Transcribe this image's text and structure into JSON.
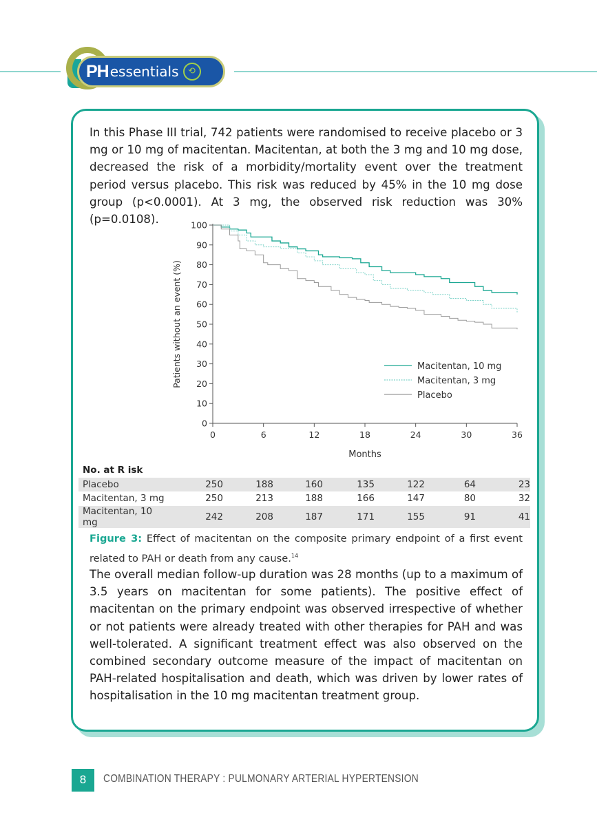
{
  "header": {
    "logo_text_bold": "PH",
    "logo_text": "essentials"
  },
  "intro_paragraph": "In this Phase III trial, 742 patients were randomised to receive placebo or 3 mg or 10 mg of macitentan. Macitentan, at both the 3 mg and 10 mg dose, decreased the risk of a morbidity/mortality event over the treatment period versus placebo. This risk was reduced by 45% in the 10 mg dose group (p<0.0001). At 3 mg, the observed risk reduction was 30% (p=0.0108).",
  "chart_data": {
    "type": "line",
    "title": "",
    "xlabel": "Months",
    "ylabel": "Patients without an event (%)",
    "xlim": [
      0,
      36
    ],
    "ylim": [
      0,
      100
    ],
    "xticks": [
      "0",
      "6",
      "12",
      "18",
      "24",
      "30",
      "36"
    ],
    "yticks": [
      "0",
      "10",
      "20",
      "30",
      "40",
      "50",
      "60",
      "70",
      "80",
      "90",
      "100"
    ],
    "legend_position": "bottom-right",
    "series": [
      {
        "name": "Macitentan, 10 mg",
        "color": "#1aa792",
        "dash": "",
        "x": [
          0,
          1,
          2,
          3,
          4,
          4.5,
          6,
          7,
          8,
          9,
          10,
          11,
          12,
          12.5,
          13,
          15,
          16.5,
          17.5,
          18.5,
          20,
          21,
          24,
          25,
          27,
          28,
          30,
          31,
          32,
          33,
          36
        ],
        "y": [
          100,
          99,
          98,
          97.5,
          96,
          94,
          94,
          92,
          91,
          89,
          88,
          87,
          87,
          85,
          84,
          83.5,
          83,
          81,
          79,
          77,
          76,
          75,
          74,
          73,
          71,
          71,
          69,
          67,
          66,
          65
        ]
      },
      {
        "name": "Macitentan, 3 mg",
        "color": "#7fd3c9",
        "dash": "2,1.5",
        "x": [
          0,
          2,
          3,
          4,
          5,
          6,
          8,
          10,
          11,
          12,
          13,
          15,
          17,
          18,
          19,
          20,
          21,
          23,
          25,
          26,
          28,
          30,
          32,
          33,
          36
        ],
        "y": [
          100,
          97,
          95,
          92,
          90,
          89,
          88,
          86,
          84,
          82,
          80,
          78,
          76,
          75,
          72,
          70,
          68,
          67,
          66,
          65,
          63,
          62,
          60,
          58,
          56
        ]
      },
      {
        "name": "Placebo",
        "color": "#9a9a9a",
        "dash": "",
        "x": [
          0,
          1,
          2,
          3,
          3.2,
          4,
          5,
          6,
          6.5,
          8,
          9,
          10,
          11,
          12,
          12.5,
          14,
          15,
          16,
          17,
          18,
          18.5,
          20,
          21,
          22,
          23,
          24,
          25,
          27,
          28,
          29,
          30,
          31,
          32,
          33,
          36
        ],
        "y": [
          100,
          98,
          95,
          92,
          88,
          87,
          85,
          81,
          80,
          78,
          77,
          73,
          72,
          71,
          69,
          67,
          65,
          63.5,
          62.5,
          62,
          61,
          60,
          59,
          58.5,
          58,
          57,
          55,
          54,
          53,
          52,
          51.5,
          51,
          50,
          48,
          47.5
        ]
      }
    ]
  },
  "risk_table": {
    "title": "No. at R isk",
    "rows": [
      {
        "label": "Placebo",
        "values": [
          "250",
          "188",
          "160",
          "135",
          "122",
          "64",
          "23"
        ]
      },
      {
        "label": "Macitentan, 3 mg",
        "values": [
          "250",
          "213",
          "188",
          "166",
          "147",
          "80",
          "32"
        ]
      },
      {
        "label": "Macitentan, 10 mg",
        "values": [
          "242",
          "208",
          "187",
          "171",
          "155",
          "91",
          "41"
        ]
      }
    ]
  },
  "caption": {
    "label": "Figure 3:",
    "text": " Effect of macitentan on the composite primary endpoint of a first event related to PAH or death from any cause.",
    "ref": "14"
  },
  "body_paragraph": "The overall median follow-up duration was 28 months (up to a maximum of 3.5 years on macitentan for some patients). The positive effect of macitentan on the primary endpoint was observed irrespective of whether or not patients were already treated with other therapies for PAH and was well-tolerated. A significant treatment effect was also observed on the combined secondary outcome measure of the impact of macitentan on PAH-related hospitalisation and death, which was driven by lower rates of hospitalisation  in the 10 mg macitentan treatment group.",
  "footer": {
    "page_number": "8",
    "title": "COMBINATION THERAPY : PULMONARY ARTERIAL HYPERTENSION"
  },
  "colors": {
    "accent": "#1aa792",
    "brand_blue": "#1a56a6"
  }
}
